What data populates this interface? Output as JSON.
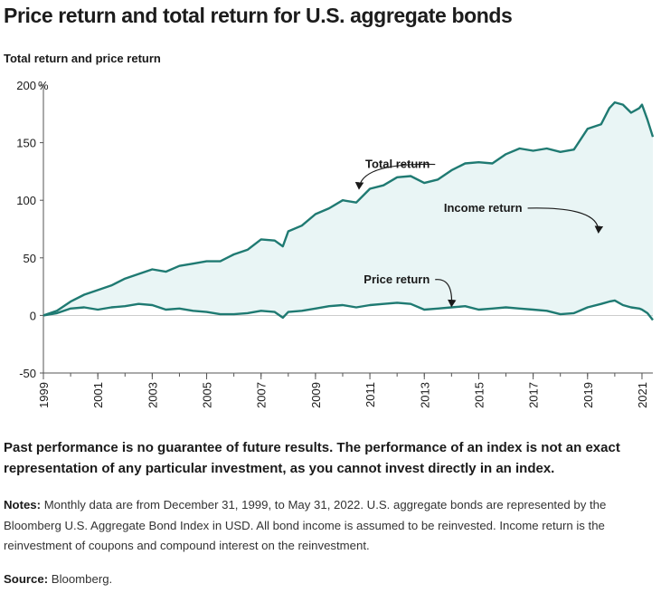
{
  "title": "Price return and total return for U.S. aggregate bonds",
  "disclaimer": "Past performance is no guarantee of future results. The performance of an index is not an exact representation of any particular investment, as you cannot invest directly in an index.",
  "notes": {
    "label": "Notes:",
    "text": " Monthly data are from December 31, 1999, to May 31, 2022. U.S. aggregate bonds are represented by the Bloomberg U.S. Aggregate Bond Index in USD. All bond income is assumed to be reinvested. Income return is the reinvestment of coupons and compound interest on the reinvestment."
  },
  "source": {
    "label": "Source:",
    "text": " Bloomberg."
  },
  "colors": {
    "line": "#1f7a72",
    "area": "#e9f5f5",
    "axis": "#555555"
  },
  "chart_data": {
    "type": "line",
    "title": "Total return and price return",
    "ylim": [
      -50,
      200
    ],
    "y_ticks": [
      -50,
      0,
      50,
      100,
      150,
      200
    ],
    "y_tick_labels": [
      "-50",
      "0",
      "50",
      "100",
      "150",
      "200"
    ],
    "y_unit": "%",
    "x_range": [
      1999,
      2021.4
    ],
    "x_ticks": [
      "1999",
      "2001",
      "2003",
      "2005",
      "2007",
      "2009",
      "2011",
      "2013",
      "2015",
      "2017",
      "2019",
      "2021"
    ],
    "fill_between_label": "Income return",
    "series": [
      {
        "name": "Total return",
        "x": [
          1999.0,
          1999.5,
          2000.0,
          2000.5,
          2001.0,
          2001.5,
          2002.0,
          2002.5,
          2003.0,
          2003.5,
          2004.0,
          2004.5,
          2005.0,
          2005.5,
          2006.0,
          2006.5,
          2007.0,
          2007.5,
          2007.8,
          2008.0,
          2008.5,
          2009.0,
          2009.5,
          2010.0,
          2010.5,
          2011.0,
          2011.5,
          2012.0,
          2012.5,
          2013.0,
          2013.5,
          2014.0,
          2014.5,
          2015.0,
          2015.5,
          2016.0,
          2016.5,
          2017.0,
          2017.5,
          2018.0,
          2018.5,
          2019.0,
          2019.5,
          2019.8,
          2020.0,
          2020.3,
          2020.6,
          2020.9,
          2021.0,
          2021.2,
          2021.4
        ],
        "values": [
          0,
          4,
          12,
          18,
          22,
          26,
          32,
          36,
          40,
          38,
          43,
          45,
          47,
          47,
          53,
          57,
          66,
          65,
          60,
          73,
          78,
          88,
          93,
          100,
          98,
          110,
          113,
          120,
          121,
          115,
          118,
          126,
          132,
          133,
          132,
          140,
          145,
          143,
          145,
          142,
          144,
          162,
          166,
          180,
          185,
          183,
          176,
          180,
          183,
          170,
          155
        ]
      },
      {
        "name": "Price return",
        "x": [
          1999.0,
          1999.5,
          2000.0,
          2000.5,
          2001.0,
          2001.5,
          2002.0,
          2002.5,
          2003.0,
          2003.5,
          2004.0,
          2004.5,
          2005.0,
          2005.5,
          2006.0,
          2006.5,
          2007.0,
          2007.5,
          2007.8,
          2008.0,
          2008.5,
          2009.0,
          2009.5,
          2010.0,
          2010.5,
          2011.0,
          2011.5,
          2012.0,
          2012.5,
          2013.0,
          2013.5,
          2014.0,
          2014.5,
          2015.0,
          2015.5,
          2016.0,
          2016.5,
          2017.0,
          2017.5,
          2018.0,
          2018.5,
          2019.0,
          2019.5,
          2019.8,
          2020.0,
          2020.3,
          2020.6,
          2020.9,
          2021.0,
          2021.2,
          2021.4
        ],
        "values": [
          0,
          2,
          6,
          7,
          5,
          7,
          8,
          10,
          9,
          5,
          6,
          4,
          3,
          1,
          1,
          2,
          4,
          3,
          -2,
          3,
          4,
          6,
          8,
          9,
          7,
          9,
          10,
          11,
          10,
          5,
          6,
          7,
          8,
          5,
          6,
          7,
          6,
          5,
          4,
          1,
          2,
          7,
          10,
          12,
          13,
          9,
          7,
          6,
          5,
          2,
          -4
        ]
      }
    ],
    "annotations": [
      {
        "text": "Total return",
        "x": 2013.2,
        "y": 128,
        "arrow_to": [
          2010.6,
          110
        ]
      },
      {
        "text": "Income return",
        "x": 2016.6,
        "y": 90,
        "arrow_to": [
          2019.4,
          72
        ]
      },
      {
        "text": "Price return",
        "x": 2013.2,
        "y": 28,
        "arrow_to": [
          2014.0,
          8
        ]
      }
    ]
  }
}
